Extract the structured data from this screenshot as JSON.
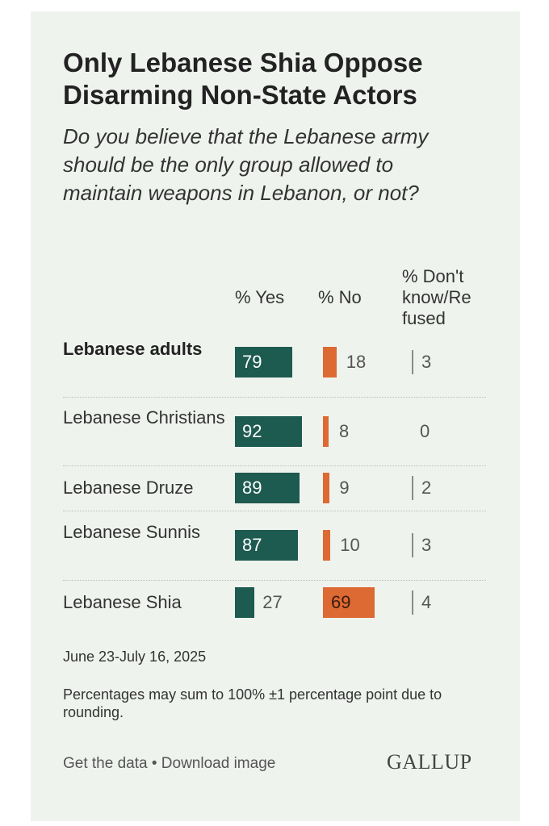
{
  "title": "Only Lebanese Shia Oppose Disarming Non-State Actors",
  "subtitle": "Do you believe that the Lebanese army should be the only group allowed to maintain weapons in Lebanon, or not?",
  "columns": {
    "yes": "% Yes",
    "no": "% No",
    "dk": "% Don't know/Re fused"
  },
  "date": "June 23-July 16, 2025",
  "note": "Percentages may sum to 100% ±1 percentage point due to rounding.",
  "footer": {
    "get_data": "Get the data",
    "separator": "•",
    "download": "Download image",
    "brand": "GALLUP"
  },
  "colors": {
    "yes": "#1d5a50",
    "no": "#dd6a33",
    "dk": "#8a8a8a",
    "background": "#eff3ee"
  },
  "chart_data": {
    "type": "bar",
    "categories": [
      "Lebanese adults",
      "Lebanese Christians",
      "Lebanese Druze",
      "Lebanese Sunnis",
      "Lebanese Shia"
    ],
    "series": [
      {
        "name": "% Yes",
        "values": [
          79,
          92,
          89,
          87,
          27
        ]
      },
      {
        "name": "% No",
        "values": [
          18,
          8,
          9,
          10,
          69
        ]
      },
      {
        "name": "% Don't know/Re fused",
        "values": [
          3,
          0,
          2,
          3,
          4
        ]
      }
    ],
    "xlim": [
      0,
      100
    ]
  }
}
